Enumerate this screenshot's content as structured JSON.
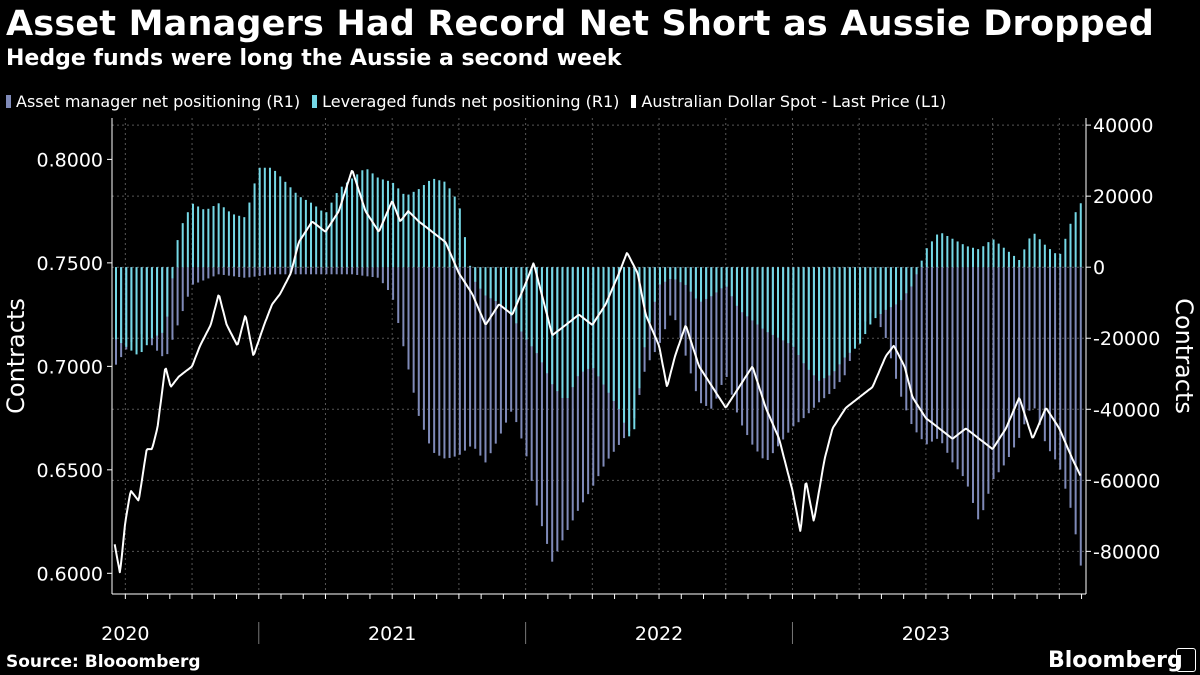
{
  "title": "Asset Managers Had Record Net Short as Aussie Dropped",
  "subtitle": "Hedge funds were long the Aussie a second week",
  "legend": [
    {
      "label": "Asset manager net positioning (R1)",
      "color": "#7f8ab8"
    },
    {
      "label": "Leveraged funds net positioning (R1)",
      "color": "#75d8e6"
    },
    {
      "label": "Australian Dollar Spot - Last Price (L1)",
      "color": "#ffffff"
    }
  ],
  "source": "Source: Blooomberg",
  "brand": "Bloomberg",
  "chart_data": {
    "type": "bar+line",
    "left_axis": {
      "label": "Contracts",
      "range": [
        0.59,
        0.82
      ],
      "ticks": [
        "0.8000",
        "0.7500",
        "0.7000",
        "0.6500",
        "0.6000"
      ],
      "tick_values": [
        0.8,
        0.75,
        0.7,
        0.65,
        0.6
      ]
    },
    "right_axis": {
      "label": "Contracts",
      "range": [
        -92000,
        42000
      ],
      "ticks": [
        "40000",
        "20000",
        "0",
        "-20000",
        "-40000",
        "-60000",
        "-80000"
      ],
      "tick_values": [
        40000,
        20000,
        0,
        -20000,
        -40000,
        -60000,
        -80000
      ]
    },
    "x_range": [
      2019.95,
      2023.6
    ],
    "x_labels": [
      "2020",
      "2021",
      "2022",
      "2023"
    ],
    "x_label_positions": [
      2020.0,
      2021.0,
      2022.0,
      2023.0
    ],
    "x_dividers": [
      2020.5,
      2021.5,
      2022.5
    ],
    "asset_manager_series": [
      [
        2019.96,
        -28000
      ],
      [
        2020.05,
        -18000
      ],
      [
        2020.15,
        -26000
      ],
      [
        2020.25,
        -5000
      ],
      [
        2020.35,
        -2000
      ],
      [
        2020.45,
        -3000
      ],
      [
        2020.55,
        -2000
      ],
      [
        2020.65,
        -2000
      ],
      [
        2020.75,
        -2000
      ],
      [
        2020.85,
        -2000
      ],
      [
        2020.95,
        -3000
      ],
      [
        2021.0,
        -8000
      ],
      [
        2021.05,
        -25000
      ],
      [
        2021.1,
        -42000
      ],
      [
        2021.15,
        -52000
      ],
      [
        2021.2,
        -54000
      ],
      [
        2021.25,
        -53000
      ],
      [
        2021.3,
        -50000
      ],
      [
        2021.35,
        -55000
      ],
      [
        2021.4,
        -48000
      ],
      [
        2021.45,
        -40000
      ],
      [
        2021.5,
        -52000
      ],
      [
        2021.55,
        -70000
      ],
      [
        2021.6,
        -83000
      ],
      [
        2021.65,
        -75000
      ],
      [
        2021.7,
        -68000
      ],
      [
        2021.75,
        -62000
      ],
      [
        2021.8,
        -55000
      ],
      [
        2021.85,
        -50000
      ],
      [
        2021.9,
        -45000
      ],
      [
        2021.95,
        -28000
      ],
      [
        2022.0,
        -22000
      ],
      [
        2022.05,
        -12000
      ],
      [
        2022.1,
        -25000
      ],
      [
        2022.15,
        -38000
      ],
      [
        2022.2,
        -40000
      ],
      [
        2022.25,
        -30000
      ],
      [
        2022.3,
        -43000
      ],
      [
        2022.35,
        -50000
      ],
      [
        2022.4,
        -55000
      ],
      [
        2022.45,
        -50000
      ],
      [
        2022.5,
        -45000
      ],
      [
        2022.55,
        -42000
      ],
      [
        2022.6,
        -38000
      ],
      [
        2022.65,
        -35000
      ],
      [
        2022.7,
        -30000
      ],
      [
        2022.75,
        -18000
      ],
      [
        2022.8,
        -12000
      ],
      [
        2022.85,
        -20000
      ],
      [
        2022.9,
        -35000
      ],
      [
        2022.95,
        -45000
      ],
      [
        2023.0,
        -50000
      ],
      [
        2023.05,
        -48000
      ],
      [
        2023.1,
        -55000
      ],
      [
        2023.15,
        -60000
      ],
      [
        2023.2,
        -72000
      ],
      [
        2023.25,
        -60000
      ],
      [
        2023.3,
        -55000
      ],
      [
        2023.35,
        -48000
      ],
      [
        2023.4,
        -38000
      ],
      [
        2023.45,
        -50000
      ],
      [
        2023.5,
        -56000
      ],
      [
        2023.55,
        -70000
      ],
      [
        2023.58,
        -84000
      ]
    ],
    "leveraged_funds_series": [
      [
        2019.96,
        -20000
      ],
      [
        2020.05,
        -25000
      ],
      [
        2020.1,
        -20000
      ],
      [
        2020.15,
        -18000
      ],
      [
        2020.2,
        10000
      ],
      [
        2020.25,
        18000
      ],
      [
        2020.3,
        16000
      ],
      [
        2020.35,
        18000
      ],
      [
        2020.4,
        15000
      ],
      [
        2020.45,
        14000
      ],
      [
        2020.5,
        28000
      ],
      [
        2020.55,
        28000
      ],
      [
        2020.6,
        24000
      ],
      [
        2020.65,
        20000
      ],
      [
        2020.7,
        18000
      ],
      [
        2020.75,
        15000
      ],
      [
        2020.8,
        22000
      ],
      [
        2020.85,
        25000
      ],
      [
        2020.9,
        28000
      ],
      [
        2020.95,
        25000
      ],
      [
        2021.0,
        24000
      ],
      [
        2021.05,
        20000
      ],
      [
        2021.1,
        22000
      ],
      [
        2021.15,
        25000
      ],
      [
        2021.2,
        24000
      ],
      [
        2021.25,
        18000
      ],
      [
        2021.3,
        -3000
      ],
      [
        2021.35,
        -8000
      ],
      [
        2021.4,
        -10000
      ],
      [
        2021.45,
        -14000
      ],
      [
        2021.5,
        -20000
      ],
      [
        2021.55,
        -25000
      ],
      [
        2021.6,
        -33000
      ],
      [
        2021.65,
        -38000
      ],
      [
        2021.7,
        -30000
      ],
      [
        2021.75,
        -28000
      ],
      [
        2021.8,
        -34000
      ],
      [
        2021.85,
        -40000
      ],
      [
        2021.9,
        -50000
      ],
      [
        2021.95,
        -20000
      ],
      [
        2022.0,
        -5000
      ],
      [
        2022.05,
        -3000
      ],
      [
        2022.1,
        -5000
      ],
      [
        2022.15,
        -10000
      ],
      [
        2022.2,
        -8000
      ],
      [
        2022.25,
        -5000
      ],
      [
        2022.3,
        -12000
      ],
      [
        2022.35,
        -15000
      ],
      [
        2022.4,
        -18000
      ],
      [
        2022.45,
        -20000
      ],
      [
        2022.5,
        -22000
      ],
      [
        2022.55,
        -28000
      ],
      [
        2022.6,
        -32000
      ],
      [
        2022.65,
        -30000
      ],
      [
        2022.7,
        -25000
      ],
      [
        2022.75,
        -22000
      ],
      [
        2022.8,
        -15000
      ],
      [
        2022.85,
        -12000
      ],
      [
        2022.9,
        -10000
      ],
      [
        2022.95,
        -5000
      ],
      [
        2023.0,
        5000
      ],
      [
        2023.05,
        10000
      ],
      [
        2023.1,
        8000
      ],
      [
        2023.15,
        6000
      ],
      [
        2023.2,
        5000
      ],
      [
        2023.25,
        8000
      ],
      [
        2023.3,
        5000
      ],
      [
        2023.35,
        2000
      ],
      [
        2023.4,
        10000
      ],
      [
        2023.45,
        6000
      ],
      [
        2023.5,
        3000
      ],
      [
        2023.55,
        14000
      ],
      [
        2023.58,
        18000
      ]
    ],
    "aud_spot_series": [
      [
        2019.96,
        0.614
      ],
      [
        2019.98,
        0.6
      ],
      [
        2020.0,
        0.625
      ],
      [
        2020.02,
        0.64
      ],
      [
        2020.05,
        0.635
      ],
      [
        2020.08,
        0.66
      ],
      [
        2020.1,
        0.66
      ],
      [
        2020.12,
        0.67
      ],
      [
        2020.15,
        0.7
      ],
      [
        2020.17,
        0.69
      ],
      [
        2020.2,
        0.695
      ],
      [
        2020.25,
        0.7
      ],
      [
        2020.28,
        0.71
      ],
      [
        2020.32,
        0.72
      ],
      [
        2020.35,
        0.735
      ],
      [
        2020.38,
        0.72
      ],
      [
        2020.42,
        0.71
      ],
      [
        2020.45,
        0.725
      ],
      [
        2020.48,
        0.705
      ],
      [
        2020.52,
        0.72
      ],
      [
        2020.55,
        0.73
      ],
      [
        2020.58,
        0.735
      ],
      [
        2020.62,
        0.745
      ],
      [
        2020.65,
        0.76
      ],
      [
        2020.7,
        0.77
      ],
      [
        2020.75,
        0.765
      ],
      [
        2020.8,
        0.775
      ],
      [
        2020.85,
        0.795
      ],
      [
        2020.9,
        0.775
      ],
      [
        2020.95,
        0.765
      ],
      [
        2021.0,
        0.78
      ],
      [
        2021.03,
        0.77
      ],
      [
        2021.06,
        0.775
      ],
      [
        2021.1,
        0.77
      ],
      [
        2021.15,
        0.765
      ],
      [
        2021.2,
        0.76
      ],
      [
        2021.25,
        0.745
      ],
      [
        2021.3,
        0.735
      ],
      [
        2021.35,
        0.72
      ],
      [
        2021.4,
        0.73
      ],
      [
        2021.45,
        0.725
      ],
      [
        2021.5,
        0.74
      ],
      [
        2021.53,
        0.75
      ],
      [
        2021.56,
        0.735
      ],
      [
        2021.6,
        0.715
      ],
      [
        2021.65,
        0.72
      ],
      [
        2021.7,
        0.725
      ],
      [
        2021.75,
        0.72
      ],
      [
        2021.8,
        0.73
      ],
      [
        2021.85,
        0.745
      ],
      [
        2021.88,
        0.755
      ],
      [
        2021.92,
        0.745
      ],
      [
        2021.95,
        0.725
      ],
      [
        2022.0,
        0.71
      ],
      [
        2022.03,
        0.69
      ],
      [
        2022.06,
        0.705
      ],
      [
        2022.1,
        0.72
      ],
      [
        2022.15,
        0.7
      ],
      [
        2022.2,
        0.69
      ],
      [
        2022.25,
        0.68
      ],
      [
        2022.3,
        0.69
      ],
      [
        2022.35,
        0.7
      ],
      [
        2022.4,
        0.68
      ],
      [
        2022.45,
        0.665
      ],
      [
        2022.5,
        0.64
      ],
      [
        2022.53,
        0.62
      ],
      [
        2022.55,
        0.645
      ],
      [
        2022.58,
        0.625
      ],
      [
        2022.62,
        0.655
      ],
      [
        2022.65,
        0.67
      ],
      [
        2022.7,
        0.68
      ],
      [
        2022.75,
        0.685
      ],
      [
        2022.8,
        0.69
      ],
      [
        2022.85,
        0.705
      ],
      [
        2022.88,
        0.71
      ],
      [
        2022.92,
        0.7
      ],
      [
        2022.95,
        0.685
      ],
      [
        2023.0,
        0.675
      ],
      [
        2023.05,
        0.67
      ],
      [
        2023.1,
        0.665
      ],
      [
        2023.15,
        0.67
      ],
      [
        2023.2,
        0.665
      ],
      [
        2023.25,
        0.66
      ],
      [
        2023.3,
        0.67
      ],
      [
        2023.35,
        0.685
      ],
      [
        2023.4,
        0.665
      ],
      [
        2023.45,
        0.68
      ],
      [
        2023.5,
        0.67
      ],
      [
        2023.55,
        0.655
      ],
      [
        2023.58,
        0.647
      ]
    ]
  }
}
